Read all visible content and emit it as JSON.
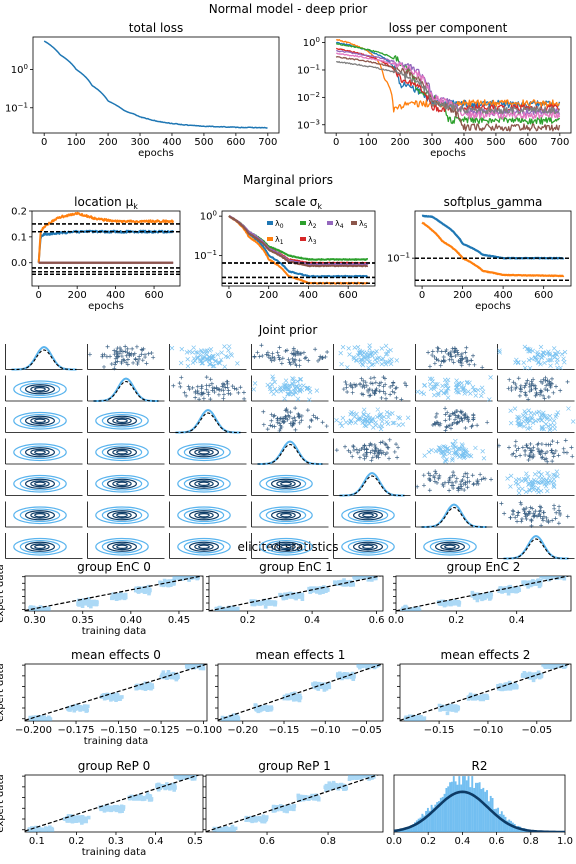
{
  "figure": {
    "suptitle": "Normal model - deep prior",
    "section_marginal": "Marginal priors",
    "section_joint": "Joint prior",
    "section_elicited": "elicited statistics"
  },
  "colors": {
    "primary": "#1f77b4",
    "light": "#5ab4ee",
    "dark": "#0d3b66",
    "series": [
      "#1f77b4",
      "#ff7f0e",
      "#2ca02c",
      "#d62728",
      "#9467bd",
      "#8c564b",
      "#e377c2",
      "#7f7f7f"
    ]
  },
  "chart_data": [
    {
      "id": "total_loss",
      "type": "line",
      "title": "total loss",
      "xlabel": "epochs",
      "ylabel": "",
      "yscale": "log",
      "xlim": [
        -35,
        735
      ],
      "ylim": [
        0.022,
        7
      ],
      "xticks": [
        "0",
        "100",
        "200",
        "300",
        "400",
        "500",
        "600",
        "700"
      ],
      "yticks": [
        "10^0",
        "10^-1"
      ],
      "series": [
        {
          "x": [
            0,
            50,
            100,
            150,
            200,
            250,
            300,
            350,
            400,
            450,
            500,
            600,
            700
          ],
          "y": [
            5.5,
            2.4,
            1.0,
            0.38,
            0.15,
            0.085,
            0.058,
            0.045,
            0.039,
            0.035,
            0.033,
            0.031,
            0.03
          ]
        }
      ]
    },
    {
      "id": "loss_per_component",
      "type": "line",
      "title": "loss per component",
      "xlabel": "epochs",
      "ylabel": "",
      "yscale": "log",
      "xlim": [
        -35,
        735
      ],
      "ylim": [
        0.0005,
        1.6
      ],
      "xticks": [
        "0",
        "100",
        "200",
        "300",
        "400",
        "500",
        "600",
        "700"
      ],
      "yticks": [
        "10^0",
        "10^-1",
        "10^-2",
        "10^-3"
      ],
      "series": [
        {
          "x": [
            0,
            200,
            300,
            700
          ],
          "y": [
            1.0,
            0.03,
            0.006,
            0.0055
          ]
        },
        {
          "x": [
            0,
            150,
            180,
            220,
            700
          ],
          "y": [
            1.3,
            0.05,
            0.003,
            0.006,
            0.006
          ]
        },
        {
          "x": [
            0,
            250,
            350,
            700
          ],
          "y": [
            0.9,
            0.02,
            0.0015,
            0.0014
          ]
        },
        {
          "x": [
            0,
            200,
            300,
            700
          ],
          "y": [
            0.6,
            0.05,
            0.004,
            0.004
          ]
        },
        {
          "x": [
            0,
            300,
            400,
            700
          ],
          "y": [
            0.5,
            0.01,
            0.003,
            0.0028
          ]
        },
        {
          "x": [
            0,
            300,
            400,
            700
          ],
          "y": [
            0.3,
            0.008,
            0.0008,
            0.0008
          ]
        },
        {
          "x": [
            0,
            300,
            400,
            700
          ],
          "y": [
            0.4,
            0.01,
            0.0022,
            0.0022
          ]
        },
        {
          "x": [
            0,
            300,
            400,
            700
          ],
          "y": [
            0.2,
            0.006,
            0.0035,
            0.0035
          ]
        }
      ]
    },
    {
      "id": "location",
      "type": "line",
      "title": "location μ_k",
      "xlabel": "epochs",
      "ylabel": "",
      "xlim": [
        -35,
        735
      ],
      "ylim": [
        -0.09,
        0.2
      ],
      "xticks": [
        "0",
        "200",
        "400",
        "600"
      ],
      "yticks": [
        "0.2",
        "0.1",
        "0.0"
      ],
      "ref_lines": [
        0.15,
        0.12,
        -0.02,
        -0.035,
        -0.045
      ],
      "series": [
        {
          "x": [
            0,
            10,
            30,
            100,
            200,
            300,
            400,
            500,
            700
          ],
          "y": [
            0.0,
            0.1,
            0.11,
            0.115,
            0.12,
            0.12,
            0.12,
            0.12,
            0.12
          ]
        },
        {
          "x": [
            0,
            10,
            30,
            100,
            200,
            300,
            400,
            500,
            700
          ],
          "y": [
            0.0,
            0.12,
            0.14,
            0.175,
            0.19,
            0.17,
            0.16,
            0.16,
            0.16
          ]
        },
        {
          "x": [
            0,
            30,
            100,
            200,
            300,
            700
          ],
          "y": [
            -0.03,
            -0.02,
            -0.01,
            -0.015,
            -0.02,
            -0.02
          ]
        },
        {
          "x": [
            0,
            30,
            100,
            200,
            300,
            700
          ],
          "y": [
            -0.04,
            -0.05,
            -0.06,
            -0.065,
            -0.05,
            -0.045
          ]
        },
        {
          "x": [
            0,
            30,
            100,
            200,
            300,
            700
          ],
          "y": [
            -0.03,
            -0.04,
            -0.05,
            -0.07,
            -0.035,
            -0.03
          ]
        },
        {
          "x": [
            0,
            30,
            100,
            200,
            300,
            700
          ],
          "y": [
            -0.05,
            -0.06,
            -0.07,
            -0.075,
            -0.06,
            -0.05
          ]
        }
      ]
    },
    {
      "id": "scale",
      "type": "line",
      "title": "scale σ_k",
      "xlabel": "",
      "ylabel": "",
      "yscale": "log",
      "xlim": [
        -35,
        735
      ],
      "ylim": [
        0.017,
        1.35
      ],
      "xticks": [
        "0",
        "200",
        "400",
        "600"
      ],
      "yticks": [
        "10^0",
        "10^-1"
      ],
      "legend_labels": [
        "λ0",
        "λ1",
        "λ2",
        "λ3",
        "λ4",
        "λ5"
      ],
      "legend_position": "top-right",
      "ref_lines": [
        0.065,
        0.028,
        0.02
      ],
      "series": [
        {
          "name": "λ0",
          "x": [
            0,
            100,
            200,
            300,
            400,
            700
          ],
          "y": [
            1.0,
            0.35,
            0.1,
            0.04,
            0.03,
            0.03
          ]
        },
        {
          "name": "λ1",
          "x": [
            0,
            100,
            200,
            300,
            400,
            700
          ],
          "y": [
            1.0,
            0.3,
            0.08,
            0.03,
            0.02,
            0.02
          ]
        },
        {
          "name": "λ2",
          "x": [
            0,
            100,
            200,
            300,
            400,
            700
          ],
          "y": [
            1.0,
            0.4,
            0.17,
            0.1,
            0.08,
            0.08
          ]
        },
        {
          "name": "λ3",
          "x": [
            0,
            100,
            200,
            300,
            400,
            700
          ],
          "y": [
            1.0,
            0.38,
            0.15,
            0.08,
            0.065,
            0.065
          ]
        },
        {
          "name": "λ4",
          "x": [
            0,
            100,
            200,
            300,
            400,
            700
          ],
          "y": [
            1.0,
            0.4,
            0.15,
            0.075,
            0.06,
            0.06
          ]
        },
        {
          "name": "λ5",
          "x": [
            0,
            100,
            200,
            300,
            400,
            700
          ],
          "y": [
            1.0,
            0.36,
            0.14,
            0.07,
            0.055,
            0.055
          ]
        }
      ]
    },
    {
      "id": "softplus_gamma",
      "type": "line",
      "title": "softplus_gamma",
      "xlabel": "epochs",
      "ylabel": "",
      "yscale": "log",
      "xlim": [
        -35,
        735
      ],
      "ylim": [
        0.022,
        1.3
      ],
      "xticks": [
        "0",
        "200",
        "400",
        "600"
      ],
      "yticks": [
        "10^-1"
      ],
      "ref_lines": [
        0.1,
        0.03
      ],
      "series": [
        {
          "x": [
            0,
            50,
            100,
            200,
            300,
            400,
            700
          ],
          "y": [
            1.0,
            0.95,
            0.65,
            0.22,
            0.12,
            0.1,
            0.1
          ]
        },
        {
          "x": [
            0,
            50,
            100,
            200,
            300,
            400,
            700
          ],
          "y": [
            0.7,
            0.45,
            0.25,
            0.1,
            0.05,
            0.04,
            0.038
          ]
        }
      ]
    },
    {
      "id": "group_enc_0",
      "type": "scatter",
      "title": "group EnC 0",
      "xlabel": "training data",
      "ylabel": "expert data",
      "xlim": [
        0.29,
        0.475
      ],
      "xticks": [
        "0.30",
        "0.35",
        "0.40",
        "0.45"
      ],
      "steps": [
        [
          0.295,
          0.315
        ],
        [
          0.345,
          0.365
        ],
        [
          0.38,
          0.395
        ],
        [
          0.405,
          0.42
        ],
        [
          0.43,
          0.445
        ],
        [
          0.445,
          0.47
        ]
      ]
    },
    {
      "id": "group_enc_1",
      "type": "scatter",
      "title": "group EnC 1",
      "xlabel": "",
      "ylabel": "",
      "xlim": [
        0.08,
        0.62
      ],
      "xticks": [
        "0.2",
        "0.4",
        "0.6"
      ],
      "steps": [
        [
          0.1,
          0.17
        ],
        [
          0.21,
          0.29
        ],
        [
          0.3,
          0.37
        ],
        [
          0.39,
          0.45
        ],
        [
          0.47,
          0.53
        ],
        [
          0.53,
          0.6
        ]
      ]
    },
    {
      "id": "group_enc_2",
      "type": "scatter",
      "title": "group EnC 2",
      "xlabel": "",
      "ylabel": "",
      "xlim": [
        0.0,
        0.58
      ],
      "xticks": [
        "0.0",
        "0.2",
        "0.4"
      ],
      "steps": [
        [
          0.02,
          0.08
        ],
        [
          0.14,
          0.21
        ],
        [
          0.25,
          0.32
        ],
        [
          0.34,
          0.41
        ],
        [
          0.42,
          0.48
        ],
        [
          0.48,
          0.56
        ]
      ]
    },
    {
      "id": "mean_effects_0",
      "type": "scatter",
      "title": "mean effects 0",
      "xlabel": "training data",
      "ylabel": "expert data",
      "xlim": [
        -0.205,
        -0.098
      ],
      "xticks": [
        "-0.200",
        "-0.175",
        "-0.150",
        "-0.125",
        "-0.100"
      ],
      "steps": [
        [
          -0.202,
          -0.19
        ],
        [
          -0.18,
          -0.168
        ],
        [
          -0.16,
          -0.148
        ],
        [
          -0.14,
          -0.13
        ],
        [
          -0.125,
          -0.115
        ],
        [
          -0.11,
          -0.1
        ]
      ]
    },
    {
      "id": "mean_effects_1",
      "type": "scatter",
      "title": "mean effects 1",
      "xlabel": "",
      "ylabel": "",
      "xlim": [
        -0.23,
        -0.03
      ],
      "xticks": [
        "-0.20",
        "-0.15",
        "-0.10",
        "-0.05"
      ],
      "steps": [
        [
          -0.225,
          -0.205
        ],
        [
          -0.185,
          -0.165
        ],
        [
          -0.15,
          -0.13
        ],
        [
          -0.115,
          -0.095
        ],
        [
          -0.085,
          -0.065
        ],
        [
          -0.06,
          -0.035
        ]
      ]
    },
    {
      "id": "mean_effects_2",
      "type": "scatter",
      "title": "mean effects 2",
      "xlabel": "",
      "ylabel": "",
      "xlim": [
        -0.19,
        -0.015
      ],
      "xticks": [
        "-0.15",
        "-0.10",
        "-0.05"
      ],
      "steps": [
        [
          -0.185,
          -0.165
        ],
        [
          -0.15,
          -0.13
        ],
        [
          -0.12,
          -0.1
        ],
        [
          -0.09,
          -0.07
        ],
        [
          -0.065,
          -0.045
        ],
        [
          -0.045,
          -0.02
        ]
      ]
    },
    {
      "id": "group_rep_0",
      "type": "scatter",
      "title": "group ReP 0",
      "xlabel": "training data",
      "ylabel": "expert data",
      "xlim": [
        0.07,
        0.52
      ],
      "xticks": [
        "0.1",
        "0.2",
        "0.3",
        "0.4",
        "0.5"
      ],
      "steps": [
        [
          0.08,
          0.14
        ],
        [
          0.17,
          0.24
        ],
        [
          0.26,
          0.32
        ],
        [
          0.33,
          0.39
        ],
        [
          0.4,
          0.45
        ],
        [
          0.45,
          0.5
        ]
      ]
    },
    {
      "id": "group_rep_1",
      "type": "scatter",
      "title": "group ReP 1",
      "xlabel": "",
      "ylabel": "",
      "xlim": [
        0.4,
        0.98
      ],
      "xticks": [
        "0.6",
        "0.8"
      ],
      "steps": [
        [
          0.42,
          0.5
        ],
        [
          0.53,
          0.6
        ],
        [
          0.62,
          0.69
        ],
        [
          0.7,
          0.77
        ],
        [
          0.79,
          0.86
        ],
        [
          0.87,
          0.95
        ]
      ]
    },
    {
      "id": "r2",
      "type": "area",
      "title": "R2",
      "xlabel": "",
      "ylabel": "",
      "xlim": [
        0.0,
        1.0
      ],
      "ylim": [
        0,
        1.05
      ],
      "xticks": [
        "0.0",
        "0.2",
        "0.4",
        "0.6",
        "0.8",
        "1.0"
      ],
      "density": {
        "mean": 0.4,
        "sd": 0.15,
        "peak": 1.0
      }
    }
  ]
}
